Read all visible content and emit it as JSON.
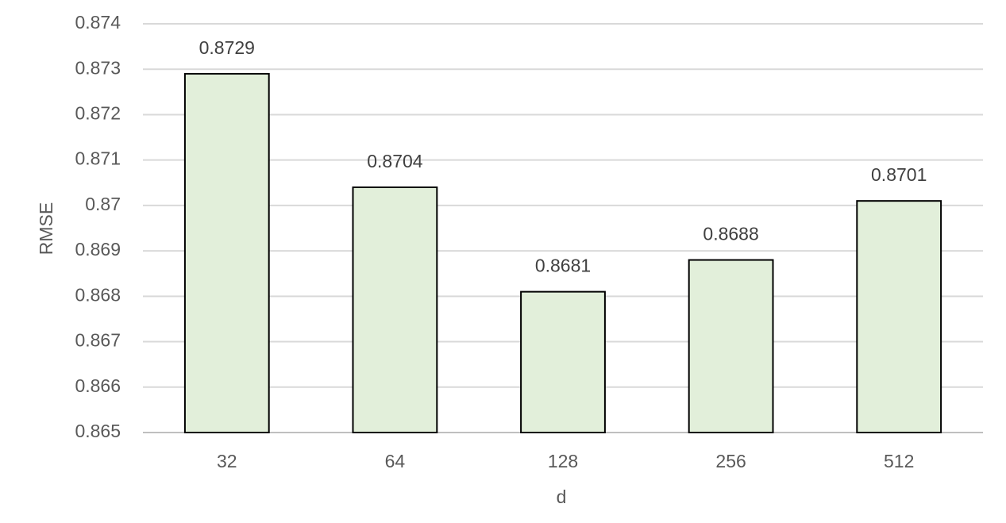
{
  "chart_data": {
    "type": "bar",
    "categories": [
      "32",
      "64",
      "128",
      "256",
      "512"
    ],
    "values": [
      0.8729,
      0.8704,
      0.8681,
      0.8688,
      0.8701
    ],
    "color": "#e2efda",
    "ylim": [
      0.865,
      0.874
    ],
    "yticks": [
      0.865,
      0.866,
      0.867,
      0.868,
      0.869,
      0.87,
      0.871,
      0.872,
      0.873,
      0.874
    ],
    "grid": true,
    "x_label": "d",
    "y_label": "RMSE"
  }
}
